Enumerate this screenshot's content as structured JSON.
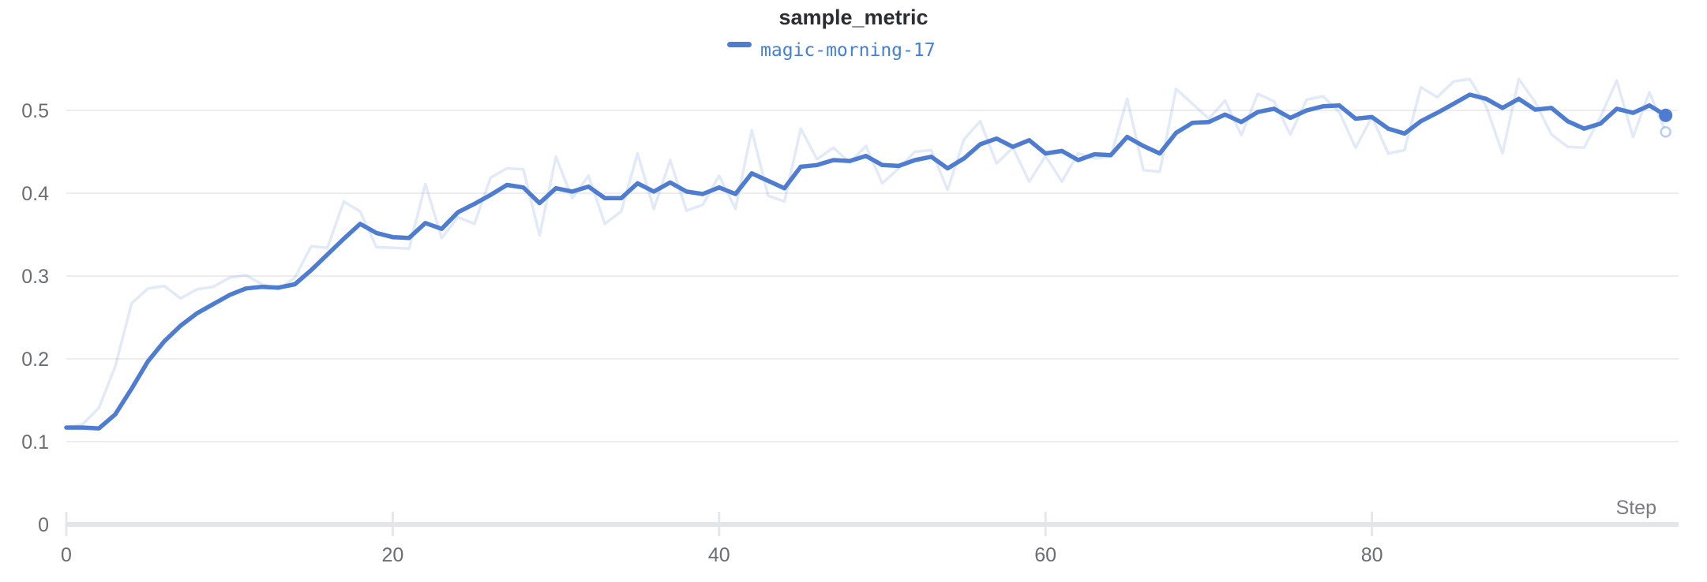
{
  "header": {
    "title": "sample_metric"
  },
  "legend": {
    "label": "magic-morning-17",
    "dash_color": "#4d7cd0"
  },
  "axes": {
    "x": {
      "label": "Step",
      "ticks": [
        0,
        20,
        40,
        60,
        80
      ],
      "min": 0,
      "max": 98
    },
    "y": {
      "tick_labels": [
        "0",
        "0.1",
        "0.2",
        "0.3",
        "0.4",
        "0.5"
      ],
      "tick_values": [
        0,
        0.1,
        0.2,
        0.3,
        0.4,
        0.5
      ]
    }
  },
  "colors": {
    "smoothed_line": "#4d7cd0",
    "raw_line": "rgba(77,124,208,0.16)",
    "raw_end_ring_stroke": "rgba(77,124,208,0.38)",
    "gridline": "#ededf1",
    "axis_line": "#e3e5e9",
    "tick_mark": "#e6e7eb",
    "title_text": "#2b2d33",
    "tick_text": "#6b6c75",
    "legend_text": "#4380d8"
  },
  "chart_data": {
    "type": "line",
    "title": "sample_metric",
    "xlabel": "Step",
    "ylabel": "",
    "xlim": [
      0,
      99
    ],
    "ylim": [
      0,
      0.552
    ],
    "grid": true,
    "legend_position": "top-center",
    "steps": [
      0,
      1,
      2,
      3,
      4,
      5,
      6,
      7,
      8,
      9,
      10,
      11,
      12,
      13,
      14,
      15,
      16,
      17,
      18,
      19,
      20,
      21,
      22,
      23,
      24,
      25,
      26,
      27,
      28,
      29,
      30,
      31,
      32,
      33,
      34,
      35,
      36,
      37,
      38,
      39,
      40,
      41,
      42,
      43,
      44,
      45,
      46,
      47,
      48,
      49,
      50,
      51,
      52,
      53,
      54,
      55,
      56,
      57,
      58,
      59,
      60,
      61,
      62,
      63,
      64,
      65,
      66,
      67,
      68,
      69,
      70,
      71,
      72,
      73,
      74,
      75,
      76,
      77,
      78,
      79,
      80,
      81,
      82,
      83,
      84,
      85,
      86,
      87,
      88,
      89,
      90,
      91,
      92,
      93,
      94,
      95,
      96,
      97,
      98
    ],
    "series": [
      {
        "name": "magic-morning-17 (original)",
        "role": "raw",
        "values": [
          0.117,
          0.121,
          0.141,
          0.191,
          0.267,
          0.285,
          0.288,
          0.273,
          0.284,
          0.287,
          0.298,
          0.301,
          0.29,
          0.284,
          0.298,
          0.336,
          0.334,
          0.39,
          0.378,
          0.335,
          0.334,
          0.333,
          0.411,
          0.346,
          0.371,
          0.363,
          0.419,
          0.43,
          0.429,
          0.349,
          0.444,
          0.394,
          0.421,
          0.363,
          0.378,
          0.448,
          0.381,
          0.44,
          0.379,
          0.386,
          0.421,
          0.381,
          0.476,
          0.397,
          0.39,
          0.478,
          0.441,
          0.455,
          0.437,
          0.457,
          0.412,
          0.43,
          0.45,
          0.452,
          0.404,
          0.465,
          0.487,
          0.436,
          0.455,
          0.414,
          0.445,
          0.414,
          0.448,
          0.442,
          0.444,
          0.514,
          0.428,
          0.426,
          0.526,
          0.508,
          0.49,
          0.512,
          0.47,
          0.52,
          0.511,
          0.471,
          0.513,
          0.517,
          0.498,
          0.455,
          0.492,
          0.448,
          0.452,
          0.528,
          0.516,
          0.535,
          0.538,
          0.505,
          0.448,
          0.538,
          0.51,
          0.471,
          0.456,
          0.455,
          0.492,
          0.536,
          0.468,
          0.522,
          0.474
        ]
      },
      {
        "name": "magic-morning-17",
        "role": "smoothed",
        "values": [
          0.117,
          0.117,
          0.116,
          0.133,
          0.164,
          0.197,
          0.221,
          0.24,
          0.255,
          0.266,
          0.277,
          0.285,
          0.287,
          0.286,
          0.29,
          0.307,
          0.326,
          0.345,
          0.363,
          0.352,
          0.347,
          0.346,
          0.364,
          0.357,
          0.377,
          0.387,
          0.398,
          0.41,
          0.407,
          0.388,
          0.406,
          0.402,
          0.408,
          0.394,
          0.394,
          0.412,
          0.402,
          0.413,
          0.402,
          0.399,
          0.407,
          0.399,
          0.424,
          0.415,
          0.406,
          0.432,
          0.434,
          0.44,
          0.439,
          0.445,
          0.434,
          0.433,
          0.44,
          0.444,
          0.43,
          0.442,
          0.459,
          0.466,
          0.456,
          0.464,
          0.448,
          0.451,
          0.44,
          0.447,
          0.446,
          0.468,
          0.457,
          0.448,
          0.473,
          0.485,
          0.486,
          0.495,
          0.486,
          0.498,
          0.502,
          0.491,
          0.5,
          0.505,
          0.506,
          0.49,
          0.492,
          0.478,
          0.472,
          0.487,
          0.497,
          0.508,
          0.519,
          0.514,
          0.503,
          0.514,
          0.501,
          0.503,
          0.487,
          0.478,
          0.484,
          0.502,
          0.497,
          0.506,
          0.494
        ]
      }
    ],
    "end_markers": {
      "smoothed_last_value": 0.494,
      "raw_last_value": 0.474,
      "smoothed_marker": "solid-dot",
      "raw_marker": "open-ring"
    }
  }
}
